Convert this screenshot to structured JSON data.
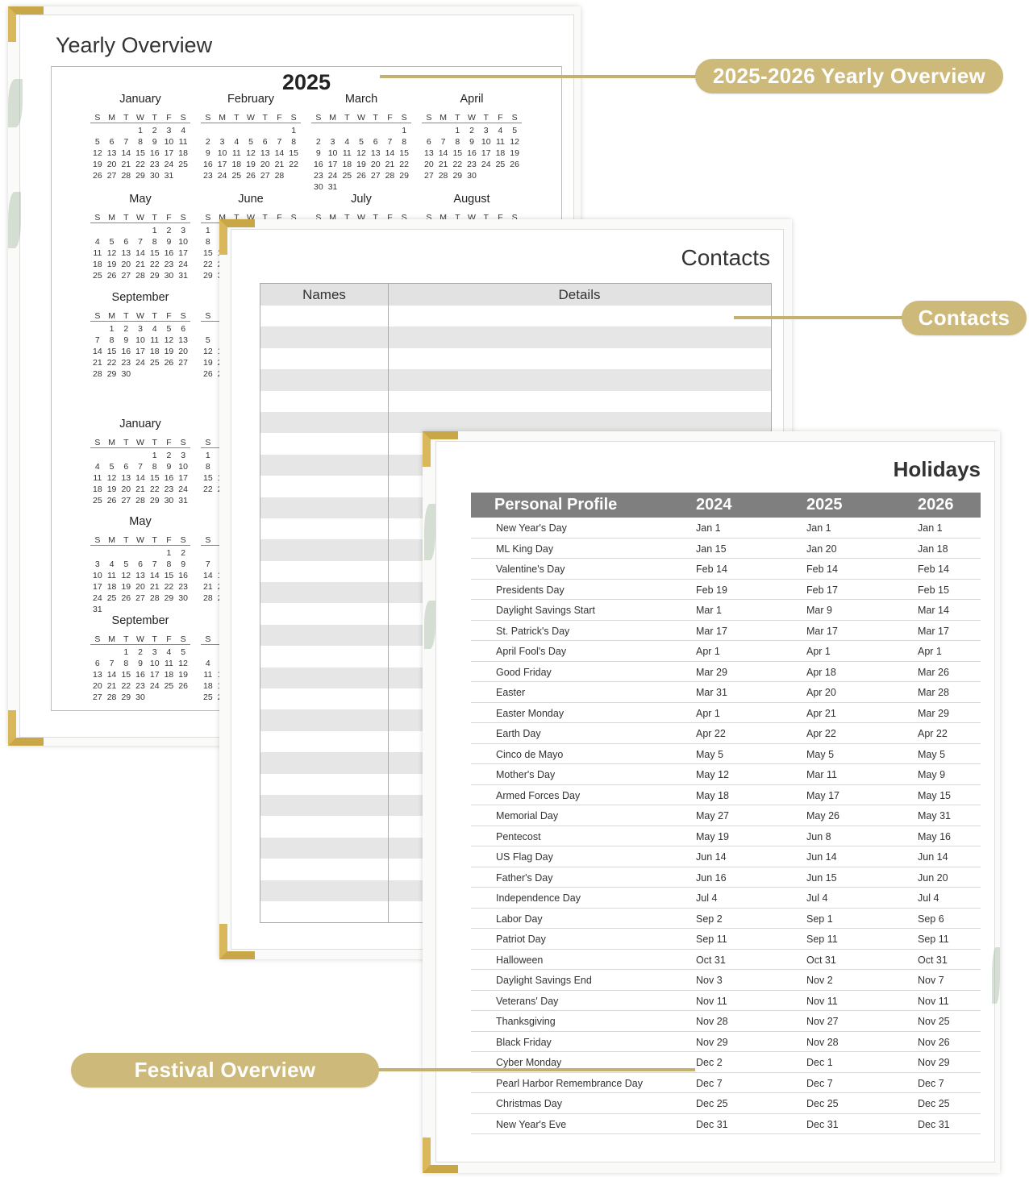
{
  "yearly": {
    "title": "Yearly Overview",
    "year_2025": "2025",
    "weekday_headers": [
      "S",
      "M",
      "T",
      "W",
      "T",
      "F",
      "S"
    ],
    "months": [
      {
        "name": "January",
        "year": 2025,
        "month": 1
      },
      {
        "name": "February",
        "year": 2025,
        "month": 2
      },
      {
        "name": "March",
        "year": 2025,
        "month": 3
      },
      {
        "name": "April",
        "year": 2025,
        "month": 4
      },
      {
        "name": "May",
        "year": 2025,
        "month": 5
      },
      {
        "name": "June",
        "year": 2025,
        "month": 6
      },
      {
        "name": "July",
        "year": 2025,
        "month": 7
      },
      {
        "name": "August",
        "year": 2025,
        "month": 8
      },
      {
        "name": "September",
        "year": 2025,
        "month": 9
      },
      {
        "name": "",
        "year": 2025,
        "month": 10
      },
      {
        "name": "January",
        "year": 2026,
        "month": 1
      },
      {
        "name": "",
        "year": 2026,
        "month": 2
      },
      {
        "name": "May",
        "year": 2026,
        "month": 5
      },
      {
        "name": "",
        "year": 2026,
        "month": 6
      },
      {
        "name": "September",
        "year": 2026,
        "month": 9
      },
      {
        "name": "",
        "year": 2026,
        "month": 10
      }
    ]
  },
  "contacts": {
    "title": "Contacts",
    "columns": [
      "Names",
      "Details"
    ]
  },
  "holidays": {
    "title": "Holidays",
    "columns": [
      "Personal Profile",
      "2024",
      "2025",
      "2026"
    ],
    "rows": [
      [
        "New Year's Day",
        "Jan 1",
        "Jan 1",
        "Jan 1"
      ],
      [
        "ML King Day",
        "Jan 15",
        "Jan 20",
        "Jan 18"
      ],
      [
        "Valentine's Day",
        "Feb 14",
        "Feb 14",
        "Feb 14"
      ],
      [
        "Presidents Day",
        "Feb 19",
        "Feb 17",
        "Feb 15"
      ],
      [
        "Daylight Savings Start",
        "Mar 1",
        "Mar 9",
        "Mar 14"
      ],
      [
        "St. Patrick's Day",
        "Mar 17",
        "Mar 17",
        "Mar 17"
      ],
      [
        "April Fool's Day",
        "Apr 1",
        "Apr 1",
        "Apr 1"
      ],
      [
        "Good Friday",
        "Mar 29",
        "Apr 18",
        "Mar 26"
      ],
      [
        "Easter",
        "Mar 31",
        "Apr 20",
        "Mar 28"
      ],
      [
        "Easter Monday",
        "Apr 1",
        "Apr 21",
        "Mar 29"
      ],
      [
        "Earth Day",
        "Apr 22",
        "Apr 22",
        "Apr 22"
      ],
      [
        "Cinco de Mayo",
        "May 5",
        "May 5",
        "May 5"
      ],
      [
        "Mother's Day",
        "May 12",
        "Mar 11",
        "May 9"
      ],
      [
        "Armed Forces Day",
        "May 18",
        "May 17",
        "May 15"
      ],
      [
        "Memorial Day",
        "May 27",
        "May 26",
        "May 31"
      ],
      [
        "Pentecost",
        "May 19",
        "Jun 8",
        "May 16"
      ],
      [
        "US Flag Day",
        "Jun 14",
        "Jun 14",
        "Jun 14"
      ],
      [
        "Father's Day",
        "Jun 16",
        "Jun 15",
        "Jun 20"
      ],
      [
        "Independence Day",
        "Jul 4",
        "Jul 4",
        "Jul 4"
      ],
      [
        "Labor Day",
        "Sep 2",
        "Sep 1",
        "Sep 6"
      ],
      [
        "Patriot Day",
        "Sep 11",
        "Sep 11",
        "Sep 11"
      ],
      [
        "Halloween",
        "Oct 31",
        "Oct 31",
        "Oct 31"
      ],
      [
        "Daylight Savings End",
        "Nov 3",
        "Nov 2",
        "Nov 7"
      ],
      [
        "Veterans' Day",
        "Nov 11",
        "Nov 11",
        "Nov 11"
      ],
      [
        "Thanksgiving",
        "Nov 28",
        "Nov 27",
        "Nov 25"
      ],
      [
        "Black Friday",
        "Nov 29",
        "Nov 28",
        "Nov 26"
      ],
      [
        "Cyber Monday",
        "Dec 2",
        "Dec 1",
        "Nov 29"
      ],
      [
        "Pearl Harbor Remembrance Day",
        "Dec 7",
        "Dec 7",
        "Dec 7"
      ],
      [
        "Christmas Day",
        "Dec 25",
        "Dec 25",
        "Dec 25"
      ],
      [
        "New Year's Eve",
        "Dec 31",
        "Dec 31",
        "Dec 31"
      ]
    ]
  },
  "callouts": {
    "yearly": "2025-2026 Yearly Overview",
    "contacts": "Contacts",
    "festival": "Festival Overview"
  },
  "colors": {
    "gold_callout": "#cdb97a",
    "gold_corner": "#c9a646",
    "table_header": "#7f7f7f",
    "row_stripe": "#e6e6e6"
  }
}
